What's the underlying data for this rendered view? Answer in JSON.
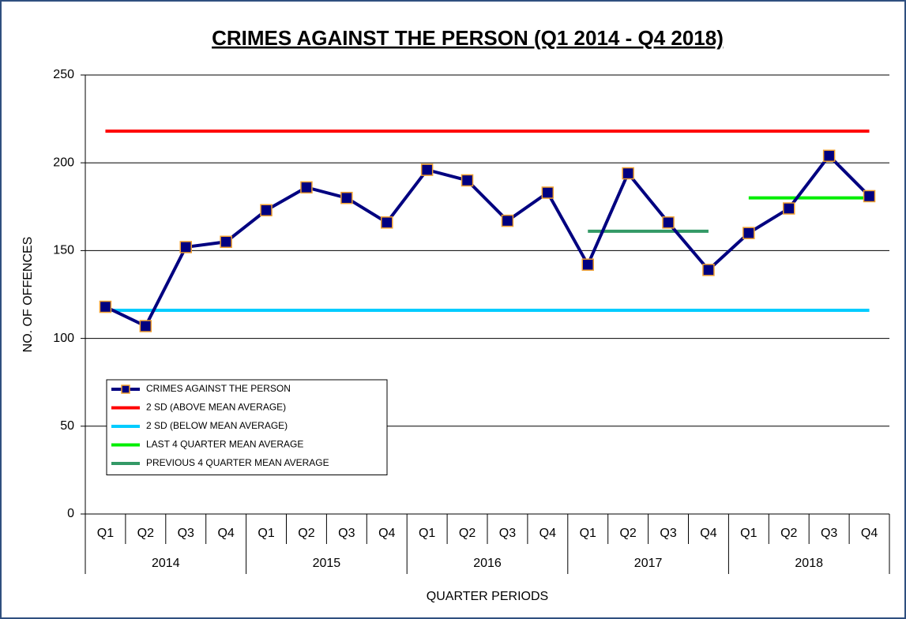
{
  "chart_data": {
    "type": "line",
    "title": "CRIMES AGAINST THE PERSON (Q1 2014 - Q4 2018)",
    "y_label": "NO. OF OFFENCES",
    "x_label": "QUARTER PERIODS",
    "categories": [
      "Q1",
      "Q2",
      "Q3",
      "Q4",
      "Q1",
      "Q2",
      "Q3",
      "Q4",
      "Q1",
      "Q2",
      "Q3",
      "Q4",
      "Q1",
      "Q2",
      "Q3",
      "Q4",
      "Q1",
      "Q2",
      "Q3",
      "Q4"
    ],
    "year_groups": [
      "2014",
      "2015",
      "2016",
      "2017",
      "2018"
    ],
    "ylim": [
      0,
      250
    ],
    "yticks": [
      0,
      50,
      100,
      150,
      200,
      250
    ],
    "grid": true,
    "legend": "lower left",
    "series": [
      {
        "name": "CRIMES AGAINST THE PERSON",
        "color": "#000080",
        "marker": "square",
        "marker_edge_color": "#f0a030",
        "values": [
          118,
          107,
          152,
          155,
          173,
          186,
          180,
          166,
          196,
          190,
          167,
          183,
          142,
          194,
          166,
          139,
          160,
          174,
          204,
          181
        ]
      },
      {
        "name": "2 SD (ABOVE MEAN AVERAGE)",
        "color": "#ff0000",
        "values": [
          218,
          218,
          218,
          218,
          218,
          218,
          218,
          218,
          218,
          218,
          218,
          218,
          218,
          218,
          218,
          218,
          218,
          218,
          218,
          218
        ]
      },
      {
        "name": "2 SD (BELOW MEAN AVERAGE)",
        "color": "#00ccff",
        "values": [
          116,
          116,
          116,
          116,
          116,
          116,
          116,
          116,
          116,
          116,
          116,
          116,
          116,
          116,
          116,
          116,
          116,
          116,
          116,
          116
        ]
      },
      {
        "name": "LAST 4 QUARTER MEAN AVERAGE",
        "color": "#00ee00",
        "values": [
          null,
          null,
          null,
          null,
          null,
          null,
          null,
          null,
          null,
          null,
          null,
          null,
          null,
          null,
          null,
          null,
          180,
          180,
          180,
          180
        ]
      },
      {
        "name": "PREVIOUS 4 QUARTER MEAN AVERAGE",
        "color": "#339966",
        "values": [
          null,
          null,
          null,
          null,
          null,
          null,
          null,
          null,
          null,
          null,
          null,
          null,
          161,
          161,
          161,
          161,
          null,
          null,
          null,
          null
        ]
      }
    ]
  }
}
